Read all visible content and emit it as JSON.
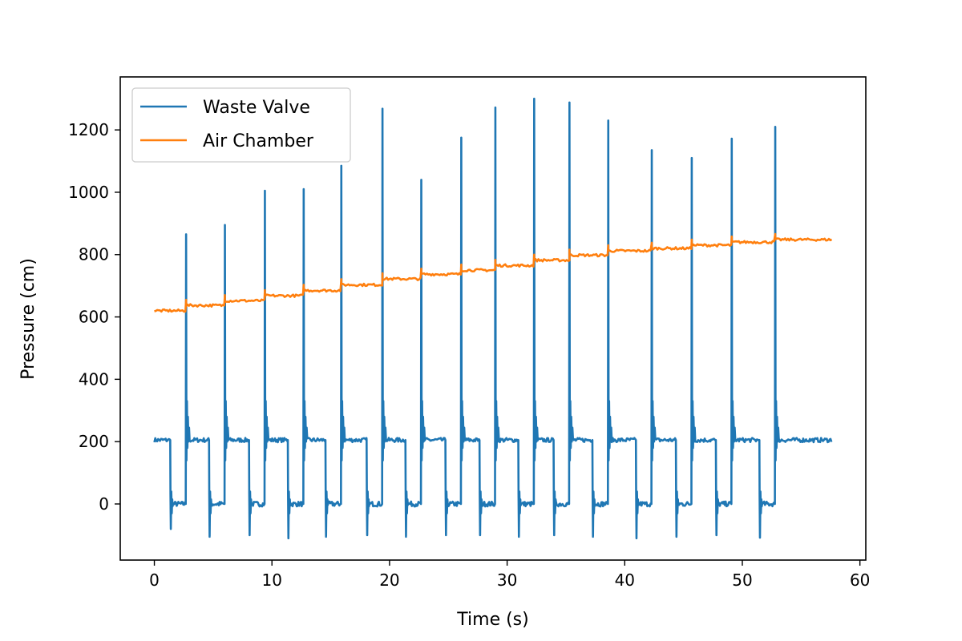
{
  "chart_data": {
    "type": "line",
    "title": "",
    "xlabel": "Time (s)",
    "ylabel": "Pressure (cm)",
    "xlim": [
      -2.9,
      60.5
    ],
    "ylim": [
      -180,
      1370
    ],
    "xticks": [
      0,
      10,
      20,
      30,
      40,
      50,
      60
    ],
    "yticks": [
      0,
      200,
      400,
      600,
      800,
      1000,
      1200
    ],
    "grid": false,
    "legend_position": "top-left",
    "series": [
      {
        "name": "Waste Valve",
        "color": "#1f77b4",
        "baseline_high": 205,
        "baseline_low": 0,
        "cycle_peaks": [
          {
            "t": 2.7,
            "peak": 865,
            "min": -80
          },
          {
            "t": 6.0,
            "peak": 895,
            "min": -105
          },
          {
            "t": 9.4,
            "peak": 1005,
            "min": -100
          },
          {
            "t": 12.7,
            "peak": 1010,
            "min": -110
          },
          {
            "t": 15.9,
            "peak": 1085,
            "min": -105
          },
          {
            "t": 19.4,
            "peak": 1268,
            "min": -100
          },
          {
            "t": 22.7,
            "peak": 1040,
            "min": -105
          },
          {
            "t": 26.1,
            "peak": 1175,
            "min": -100
          },
          {
            "t": 29.0,
            "peak": 1272,
            "min": -100
          },
          {
            "t": 32.3,
            "peak": 1300,
            "min": -105
          },
          {
            "t": 35.3,
            "peak": 1288,
            "min": -100
          },
          {
            "t": 38.6,
            "peak": 1230,
            "min": -105
          },
          {
            "t": 42.3,
            "peak": 1135,
            "min": -110
          },
          {
            "t": 45.7,
            "peak": 1110,
            "min": -105
          },
          {
            "t": 49.1,
            "peak": 1172,
            "min": -100
          },
          {
            "t": 52.8,
            "peak": 1210,
            "min": -108
          }
        ],
        "t_end": 57.6
      },
      {
        "name": "Air Chamber",
        "color": "#ff7f0e",
        "steps": [
          {
            "t": 0.0,
            "value": 620
          },
          {
            "t": 2.7,
            "value": 637
          },
          {
            "t": 6.0,
            "value": 652
          },
          {
            "t": 9.4,
            "value": 668
          },
          {
            "t": 12.7,
            "value": 685
          },
          {
            "t": 15.9,
            "value": 703
          },
          {
            "t": 19.4,
            "value": 722
          },
          {
            "t": 22.7,
            "value": 737
          },
          {
            "t": 26.1,
            "value": 750
          },
          {
            "t": 29.0,
            "value": 765
          },
          {
            "t": 32.3,
            "value": 782
          },
          {
            "t": 35.3,
            "value": 798
          },
          {
            "t": 38.6,
            "value": 812
          },
          {
            "t": 42.3,
            "value": 820
          },
          {
            "t": 45.7,
            "value": 830
          },
          {
            "t": 49.1,
            "value": 840
          },
          {
            "t": 52.8,
            "value": 848
          }
        ],
        "t_end": 57.6
      }
    ]
  }
}
